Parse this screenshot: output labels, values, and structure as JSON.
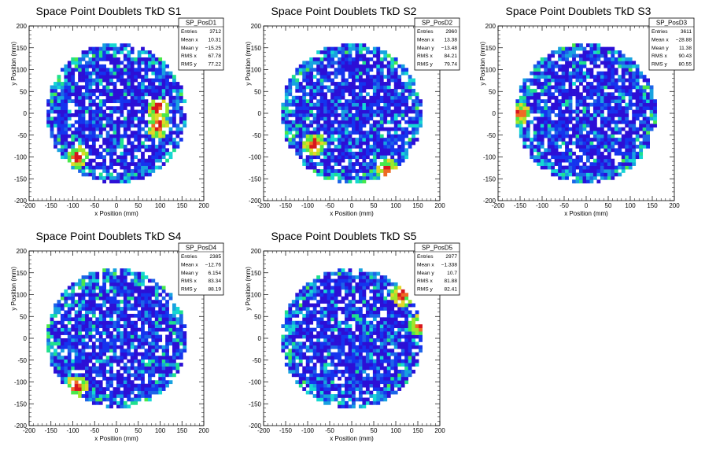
{
  "chart_data": [
    {
      "type": "heatmap",
      "title": "Space Point Doublets TkD S1",
      "xlabel": "x Position (mm)",
      "ylabel": "y Position (mm)",
      "xlim": [
        -200,
        200
      ],
      "ylim": [
        -200,
        200
      ],
      "xticks": [
        -200,
        -150,
        -100,
        -50,
        0,
        50,
        100,
        150,
        200
      ],
      "yticks": [
        -200,
        -150,
        -100,
        -50,
        0,
        50,
        100,
        150,
        200
      ],
      "radius_mm": 160,
      "bin_size_mm": 8,
      "hot_spots": [
        [
          95,
          10
        ],
        [
          95,
          -30
        ],
        [
          -90,
          -100
        ]
      ],
      "stats": {
        "name": "SP_PosD1",
        "rows": [
          {
            "label": "Entries",
            "value": "3712"
          },
          {
            "label": "Mean x",
            "value": "10.31"
          },
          {
            "label": "Mean y",
            "value": "−15.25"
          },
          {
            "label": "RMS x",
            "value": "67.78"
          },
          {
            "label": "RMS y",
            "value": "77.22"
          }
        ]
      }
    },
    {
      "type": "heatmap",
      "title": "Space Point Doublets TkD S2",
      "xlabel": "x Position (mm)",
      "ylabel": "y Position (mm)",
      "xlim": [
        -200,
        200
      ],
      "ylim": [
        -200,
        200
      ],
      "xticks": [
        -200,
        -150,
        -100,
        -50,
        0,
        50,
        100,
        150,
        200
      ],
      "yticks": [
        -200,
        -150,
        -100,
        -50,
        0,
        50,
        100,
        150,
        200
      ],
      "radius_mm": 160,
      "bin_size_mm": 8,
      "hot_spots": [
        [
          -85,
          -70
        ],
        [
          80,
          -130
        ]
      ],
      "stats": {
        "name": "SP_PosD2",
        "rows": [
          {
            "label": "Entries",
            "value": "2960"
          },
          {
            "label": "Mean x",
            "value": "13.38"
          },
          {
            "label": "Mean y",
            "value": "−13.48"
          },
          {
            "label": "RMS x",
            "value": "84.21"
          },
          {
            "label": "RMS y",
            "value": "79.74"
          }
        ]
      }
    },
    {
      "type": "heatmap",
      "title": "Space Point Doublets TkD S3",
      "xlabel": "x Position (mm)",
      "ylabel": "y Position (mm)",
      "xlim": [
        -200,
        200
      ],
      "ylim": [
        -200,
        200
      ],
      "xticks": [
        -200,
        -150,
        -100,
        -50,
        0,
        50,
        100,
        150,
        200
      ],
      "yticks": [
        -200,
        -150,
        -100,
        -50,
        0,
        50,
        100,
        150,
        200
      ],
      "radius_mm": 160,
      "bin_size_mm": 8,
      "hot_spots": [
        [
          -150,
          0
        ]
      ],
      "stats": {
        "name": "SP_PosD3",
        "rows": [
          {
            "label": "Entries",
            "value": "3611"
          },
          {
            "label": "Mean x",
            "value": "−28.88"
          },
          {
            "label": "Mean y",
            "value": "11.38"
          },
          {
            "label": "RMS x",
            "value": "90.43"
          },
          {
            "label": "RMS y",
            "value": "80.55"
          }
        ]
      }
    },
    {
      "type": "heatmap",
      "title": "Space Point Doublets TkD S4",
      "xlabel": "x Position (mm)",
      "ylabel": "y Position (mm)",
      "xlim": [
        -200,
        200
      ],
      "ylim": [
        -200,
        200
      ],
      "xticks": [
        -200,
        -150,
        -100,
        -50,
        0,
        50,
        100,
        150,
        200
      ],
      "yticks": [
        -200,
        -150,
        -100,
        -50,
        0,
        50,
        100,
        150,
        200
      ],
      "radius_mm": 160,
      "bin_size_mm": 8,
      "hot_spots": [
        [
          -90,
          -110
        ]
      ],
      "stats": {
        "name": "SP_PosD4",
        "rows": [
          {
            "label": "Entries",
            "value": "2385"
          },
          {
            "label": "Mean x",
            "value": "−12.76"
          },
          {
            "label": "Mean y",
            "value": "6.154"
          },
          {
            "label": "RMS x",
            "value": "83.34"
          },
          {
            "label": "RMS y",
            "value": "88.19"
          }
        ]
      }
    },
    {
      "type": "heatmap",
      "title": "Space Point Doublets TkD S5",
      "xlabel": "x Position (mm)",
      "ylabel": "y Position (mm)",
      "xlim": [
        -200,
        200
      ],
      "ylim": [
        -200,
        200
      ],
      "xticks": [
        -200,
        -150,
        -100,
        -50,
        0,
        50,
        100,
        150,
        200
      ],
      "yticks": [
        -200,
        -150,
        -100,
        -50,
        0,
        50,
        100,
        150,
        200
      ],
      "radius_mm": 160,
      "bin_size_mm": 8,
      "hot_spots": [
        [
          115,
          100
        ],
        [
          155,
          30
        ]
      ],
      "stats": {
        "name": "SP_PosD5",
        "rows": [
          {
            "label": "Entries",
            "value": "2977"
          },
          {
            "label": "Mean x",
            "value": "−1.338"
          },
          {
            "label": "Mean y",
            "value": "10.7"
          },
          {
            "label": "RMS x",
            "value": "81.88"
          },
          {
            "label": "RMS y",
            "value": "82.41"
          }
        ]
      }
    }
  ],
  "palette": [
    "#2c0fd6",
    "#1534ee",
    "#1c64e8",
    "#18a2e0",
    "#16d7d3",
    "#1fe08f",
    "#48e84c",
    "#a0e72a",
    "#e4d52a",
    "#ee6a24",
    "#d8161e"
  ]
}
